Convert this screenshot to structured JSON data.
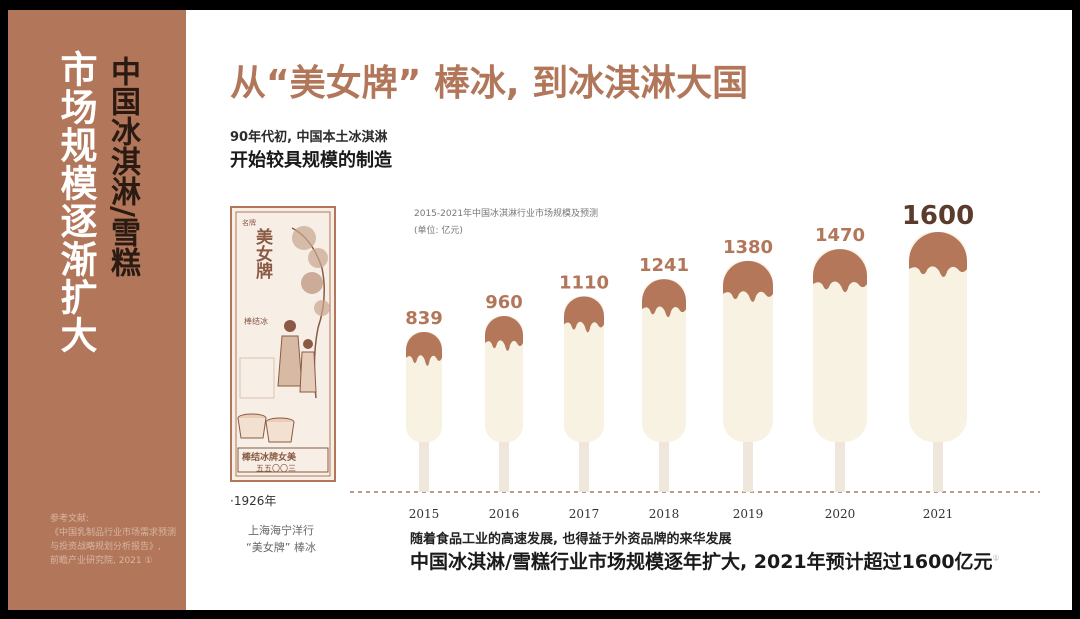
{
  "sidebar": {
    "main_title": "市场规模逐渐扩大",
    "sub_title": "中国冰淇淋/雪糕",
    "references": [
      "参考文献:",
      "《中国乳制品行业市场需求预测与投资战略规划分析报告》,",
      "前瞻产业研究院, 2021 ①"
    ]
  },
  "header": {
    "title": "从“美女牌” 棒冰, 到冰淇淋大国",
    "intro_line1": "90年代初, 中国本土冰淇淋",
    "intro_line2": "开始较具规模的制造"
  },
  "poster": {
    "brand_small": "名牌",
    "brand": "美女牌",
    "stick_label": "棒结冰",
    "banner": "棒结冰牌女美",
    "phone": "五五〇〇三",
    "year": "·1926年",
    "caption_line1": "上海海宁洋行",
    "caption_line2": "“美女牌” 棒冰"
  },
  "chart_data": {
    "type": "bar",
    "title": "2015-2021年中国冰淇淋行业市场规模及预测",
    "unit": "(单位: 亿元)",
    "categories": [
      "2015",
      "2016",
      "2017",
      "2018",
      "2019",
      "2020",
      "2021"
    ],
    "values": [
      839,
      960,
      1110,
      1241,
      1380,
      1470,
      1600
    ],
    "ylim": [
      0,
      1600
    ],
    "colors": {
      "bar": "#f8f2e3",
      "drip": "#b4775a",
      "stick": "#efe6dc",
      "value_label": "#b2775a",
      "highlight_label": "#5a3b2c"
    }
  },
  "footer": {
    "line1": "随着食品工业的高速发展, 也得益于外资品牌的来华发展",
    "line2": "中国冰淇淋/雪糕行业市场规模逐年扩大, 2021年预计超过1600亿元",
    "note_mark": "①"
  }
}
